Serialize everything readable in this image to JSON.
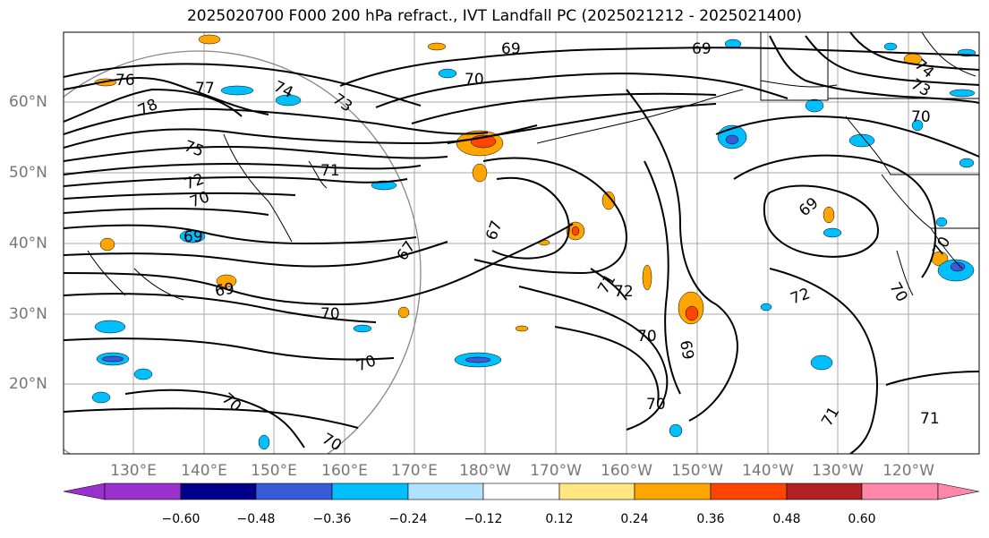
{
  "title": "2025020700 F000 200 hPa refract., IVT Landfall PC (2025021212 - 2025021400)",
  "lat_labels": [
    "60°N",
    "50°N",
    "40°N",
    "30°N",
    "20°N"
  ],
  "lon_labels": [
    "130°E",
    "140°E",
    "150°E",
    "160°E",
    "170°E",
    "180°W",
    "170°W",
    "160°W",
    "150°W",
    "140°W",
    "130°W",
    "120°W"
  ],
  "contour_labels": [
    "76",
    "78",
    "77",
    "74",
    "73",
    "75",
    "72",
    "70",
    "69",
    "71",
    "69",
    "70",
    "69",
    "67",
    "67",
    "69",
    "70",
    "70",
    "70",
    "70",
    "71",
    "72",
    "70",
    "69",
    "70",
    "69",
    "72",
    "71",
    "71",
    "70",
    "70",
    "74",
    "73",
    "70"
  ],
  "colorbar": {
    "ticks": [
      "−0.60",
      "−0.48",
      "−0.36",
      "−0.24",
      "−0.12",
      "0.12",
      "0.24",
      "0.36",
      "0.48",
      "0.60"
    ],
    "colors": [
      "#9932cc",
      "#00008b",
      "#3a5bd6",
      "#00bfff",
      "#b0e2ff",
      "#ffffff",
      "#ffe680",
      "#ffa500",
      "#ff4500",
      "#b22222",
      "#ff88aa"
    ]
  },
  "colors": {
    "positive_fill": "#ffa500",
    "positive_core": "#ff4500",
    "negative_fill": "#00bfff",
    "negative_core": "#3a5bd6",
    "grid": "#aaaaaa",
    "circle": "#888888"
  }
}
